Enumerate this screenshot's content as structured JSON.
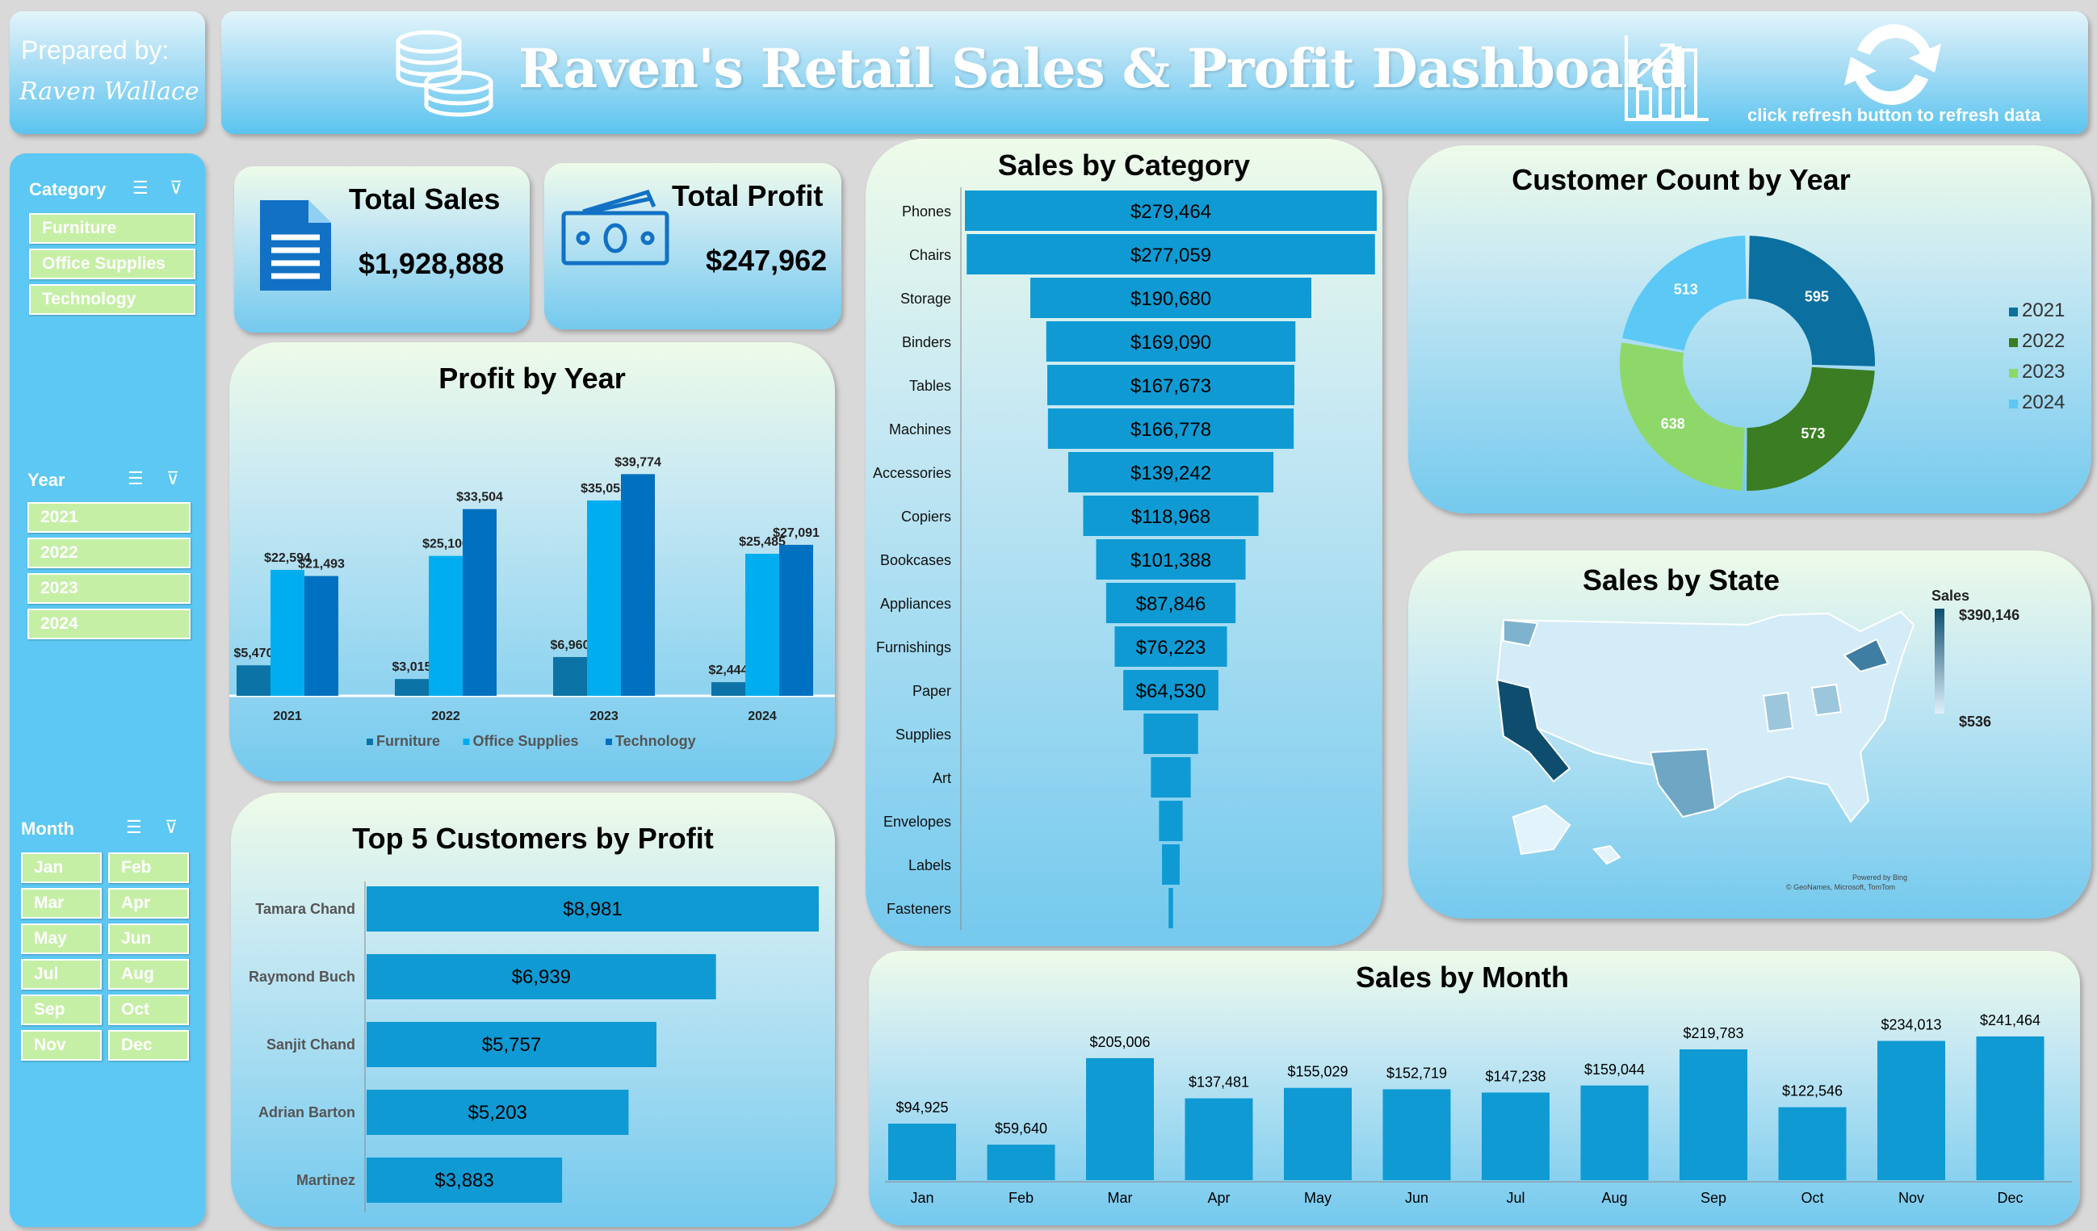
{
  "header": {
    "prepared_label": "Prepared by:",
    "prepared_name": "Raven Wallace",
    "title": "Raven's Retail Sales & Profit Dashboard",
    "refresh_hint": "click refresh button to refresh data"
  },
  "slicers": {
    "category": {
      "title": "Category",
      "items": [
        "Furniture",
        "Office Supplies",
        "Technology"
      ]
    },
    "year": {
      "title": "Year",
      "items": [
        "2021",
        "2022",
        "2023",
        "2024"
      ]
    },
    "month": {
      "title": "Month",
      "items": [
        "Jan",
        "Feb",
        "Mar",
        "Apr",
        "May",
        "Jun",
        "Jul",
        "Aug",
        "Sep",
        "Oct",
        "Nov",
        "Dec"
      ]
    }
  },
  "kpis": {
    "total_sales": {
      "label": "Total Sales",
      "value": "$1,928,888"
    },
    "total_profit": {
      "label": "Total Profit",
      "value": "$247,962"
    }
  },
  "colors": {
    "accent": "#0f9ad4",
    "furniture": "#0b73a6",
    "office_supplies": "#00aeef",
    "technology": "#0070c0",
    "y2021": "#0b6fa0",
    "y2022": "#3a7d22",
    "y2023": "#8ed86a",
    "y2024": "#5bc8f5",
    "map_max": "#0e4d6e",
    "map_min": "#dff1fa"
  },
  "chart_data": [
    {
      "id": "profit_by_year",
      "type": "bar",
      "title": "Profit by Year",
      "categories": [
        "2021",
        "2022",
        "2023",
        "2024"
      ],
      "series": [
        {
          "name": "Furniture",
          "values": [
            5470,
            3015,
            6960,
            2444
          ],
          "labels": [
            "$5,470",
            "$3,015",
            "$6,960",
            "$2,444"
          ]
        },
        {
          "name": "Office Supplies",
          "values": [
            22594,
            25100,
            35053,
            25485
          ],
          "labels": [
            "$22,594",
            "$25,100",
            "$35,053",
            "$25,485"
          ]
        },
        {
          "name": "Technology",
          "values": [
            21493,
            33504,
            39774,
            27091
          ],
          "labels": [
            "$21,493",
            "$33,504",
            "$39,774",
            "$27,091"
          ]
        }
      ],
      "legend": "bottom"
    },
    {
      "id": "sales_by_category",
      "type": "bar",
      "orientation": "horizontal-funnel",
      "title": "Sales by Category",
      "categories": [
        "Phones",
        "Chairs",
        "Storage",
        "Binders",
        "Tables",
        "Machines",
        "Accessories",
        "Copiers",
        "Bookcases",
        "Appliances",
        "Furnishings",
        "Paper",
        "Supplies",
        "Art",
        "Envelopes",
        "Labels",
        "Fasteners"
      ],
      "values": [
        279464,
        277059,
        190680,
        169090,
        167673,
        166778,
        139242,
        118968,
        101388,
        87846,
        76223,
        64530,
        37000,
        27000,
        16000,
        12000,
        3000
      ],
      "labels": [
        "$279,464",
        "$277,059",
        "$190,680",
        "$169,090",
        "$167,673",
        "$166,778",
        "$139,242",
        "$118,968",
        "$101,388",
        "$87,846",
        "$76,223",
        "$64,530",
        "",
        "",
        "",
        "",
        ""
      ]
    },
    {
      "id": "customer_count_by_year",
      "type": "pie",
      "variant": "doughnut",
      "title": "Customer Count by Year",
      "categories": [
        "2021",
        "2022",
        "2023",
        "2024"
      ],
      "values": [
        595,
        573,
        638,
        513
      ],
      "legend": "right"
    },
    {
      "id": "sales_by_state",
      "type": "heatmap",
      "variant": "choropleth-map",
      "title": "Sales by State",
      "legend_title": "Sales",
      "max_label": "$390,146",
      "min_label": "$536",
      "credits": [
        "Powered by Bing",
        "© GeoNames, Microsoft, TomTom"
      ]
    },
    {
      "id": "top5_customers",
      "type": "bar",
      "orientation": "horizontal",
      "title": "Top 5 Customers by Profit",
      "categories": [
        "Tamara Chand",
        "Raymond Buch",
        "Sanjit Chand",
        "Adrian Barton",
        "Martinez"
      ],
      "values": [
        8981,
        6939,
        5757,
        5203,
        3883
      ],
      "labels": [
        "$8,981",
        "$6,939",
        "$5,757",
        "$5,203",
        "$3,883"
      ]
    },
    {
      "id": "sales_by_month",
      "type": "bar",
      "title": "Sales by Month",
      "categories": [
        "Jan",
        "Feb",
        "Mar",
        "Apr",
        "May",
        "Jun",
        "Jul",
        "Aug",
        "Sep",
        "Oct",
        "Nov",
        "Dec"
      ],
      "values": [
        94925,
        59640,
        205006,
        137481,
        155029,
        152719,
        147238,
        159044,
        219783,
        122546,
        234013,
        241464
      ],
      "labels": [
        "$94,925",
        "$59,640",
        "$205,006",
        "$137,481",
        "$155,029",
        "$152,719",
        "$147,238",
        "$159,044",
        "$219,783",
        "$122,546",
        "$234,013",
        "$241,464"
      ]
    }
  ]
}
